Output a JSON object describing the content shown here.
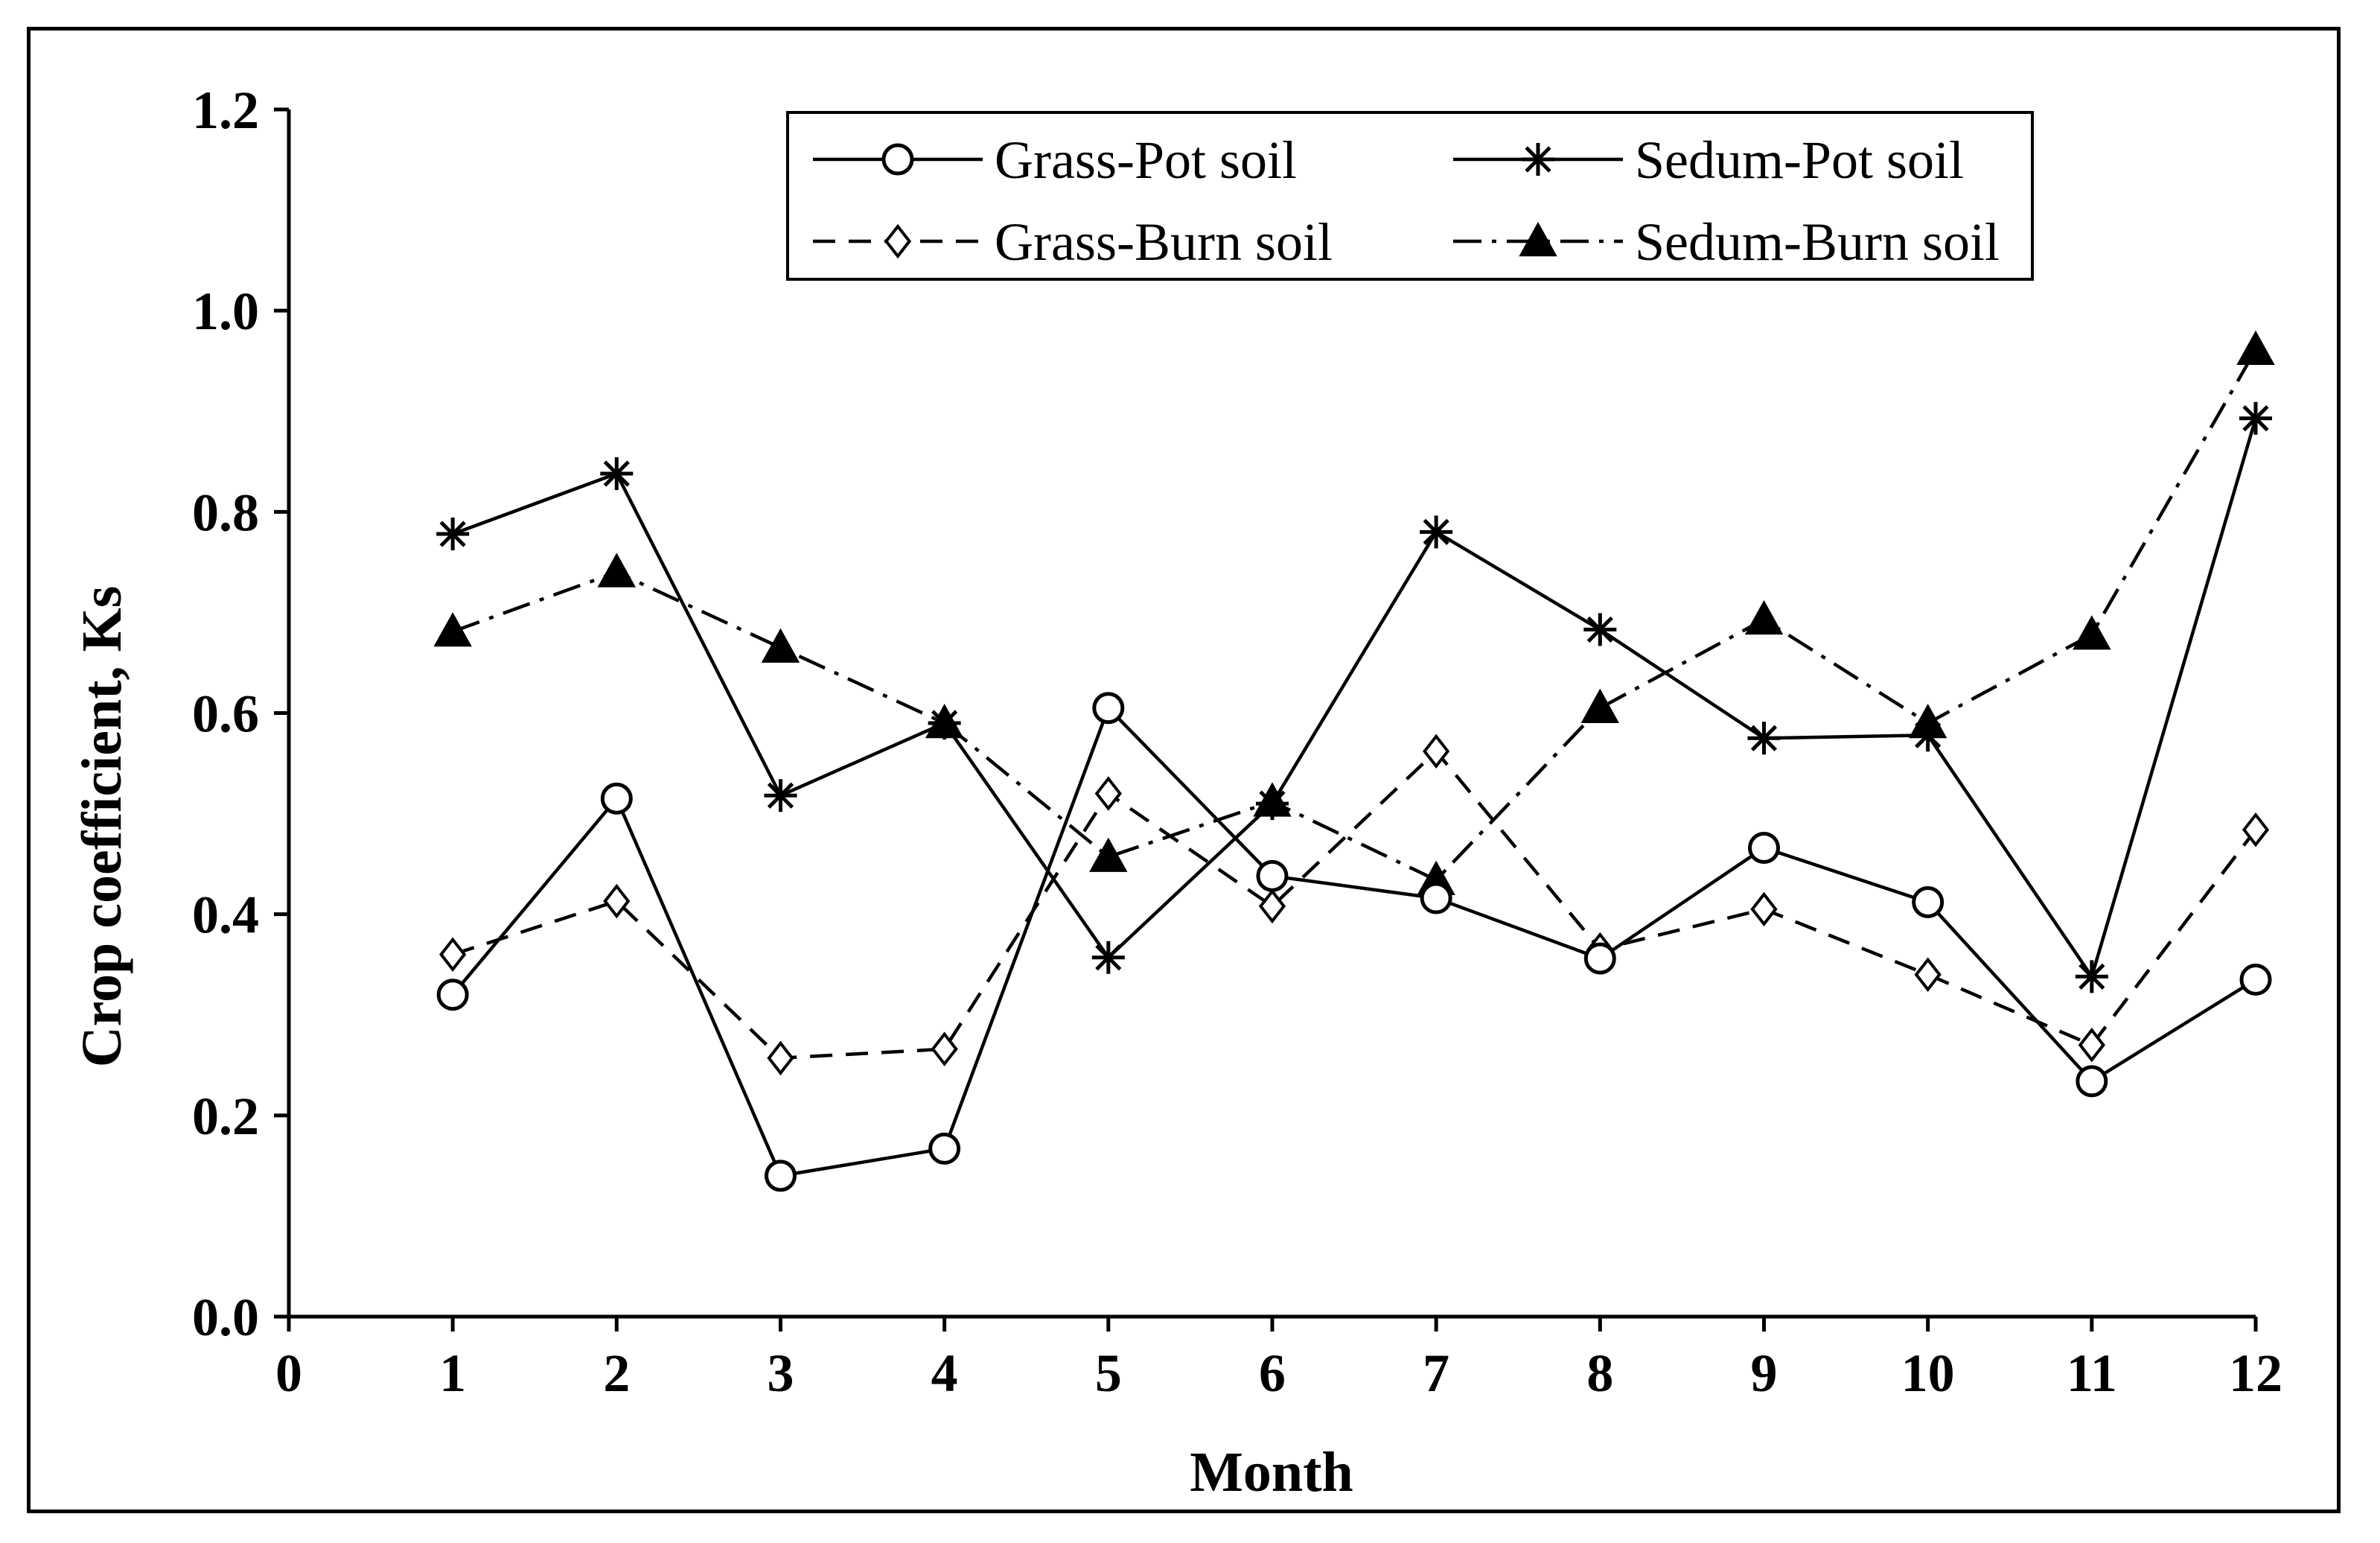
{
  "chart_data": {
    "type": "line",
    "title": "",
    "xlabel": "Month",
    "ylabel": "Crop coefficient, Ks",
    "xlim": [
      0,
      12
    ],
    "ylim": [
      0.0,
      1.2
    ],
    "x_ticks": [
      0,
      1,
      2,
      3,
      4,
      5,
      6,
      7,
      8,
      9,
      10,
      11,
      12
    ],
    "y_ticks": [
      0.0,
      0.2,
      0.4,
      0.6,
      0.8,
      1.0,
      1.2
    ],
    "x_tick_labels": [
      "0",
      "1",
      "2",
      "3",
      "4",
      "5",
      "6",
      "7",
      "8",
      "9",
      "10",
      "11",
      "12"
    ],
    "y_tick_labels": [
      "0.0",
      "0.2",
      "0.4",
      "0.6",
      "0.8",
      "1.0",
      "1.2"
    ],
    "grid": false,
    "legend_position": "top-right",
    "x": [
      1,
      2,
      3,
      4,
      5,
      6,
      7,
      8,
      9,
      10,
      11,
      12
    ],
    "series": [
      {
        "name": "Grass-Pot soil",
        "marker": "open-circle",
        "line_style": "solid",
        "color": "#000000",
        "values": [
          0.32,
          0.515,
          0.14,
          0.167,
          0.605,
          0.438,
          0.416,
          0.356,
          0.466,
          0.412,
          0.234,
          0.335
        ]
      },
      {
        "name": "Grass-Burn soil",
        "marker": "open-diamond",
        "line_style": "dashed",
        "color": "#000000",
        "values": [
          0.36,
          0.413,
          0.257,
          0.266,
          0.52,
          0.408,
          0.562,
          0.365,
          0.405,
          0.34,
          0.27,
          0.484
        ]
      },
      {
        "name": "Sedum-Pot soil",
        "marker": "star",
        "line_style": "solid",
        "color": "#000000",
        "values": [
          0.778,
          0.838,
          0.518,
          0.59,
          0.357,
          0.51,
          0.78,
          0.683,
          0.575,
          0.578,
          0.338,
          0.893
        ]
      },
      {
        "name": "Sedum-Burn soil",
        "marker": "filled-triangle",
        "line_style": "dash-dot",
        "color": "#000000",
        "values": [
          0.681,
          0.74,
          0.665,
          0.59,
          0.457,
          0.512,
          0.434,
          0.605,
          0.693,
          0.59,
          0.678,
          0.961
        ]
      }
    ]
  }
}
